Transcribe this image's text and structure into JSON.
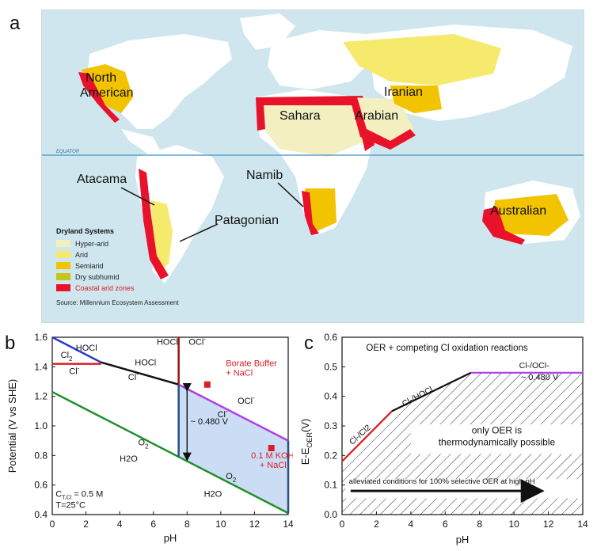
{
  "figure": {
    "panel_labels": [
      "a",
      "b",
      "c"
    ]
  },
  "map": {
    "equator_label": "EQUATOR",
    "region_labels": [
      "North\nAmerican",
      "Sahara",
      "Arabian",
      "Iranian",
      "Atacama",
      "Patagonian",
      "Namib",
      "Australian"
    ],
    "legend": {
      "title": "Dryland Systems",
      "items": [
        {
          "label": "Hyper-arid",
          "color": "#f4efc0"
        },
        {
          "label": "Arid",
          "color": "#f6ea6c"
        },
        {
          "label": "Semiarid",
          "color": "#f2c400"
        },
        {
          "label": "Dry subhumid",
          "color": "#c7c51c"
        },
        {
          "label": "Coastal arid zones",
          "color": "#e8132b"
        }
      ],
      "source": "Source: Millennium Ecosystem Assessment"
    },
    "colors": {
      "ocean": "#cfe6ee",
      "land": "#ffffff",
      "equator": "#5aa3c9"
    }
  },
  "chart_data": [
    {
      "type": "line",
      "panel": "b",
      "ylabel": "Potential (V vs SHE)",
      "xlabel": "pH",
      "xlim": [
        0,
        14
      ],
      "ylim": [
        0.4,
        1.6
      ],
      "xticks": [
        0,
        2,
        4,
        6,
        8,
        10,
        12,
        14
      ],
      "yticks": [
        0.4,
        0.6,
        0.8,
        1.0,
        1.2,
        1.4,
        1.6
      ],
      "series": [
        {
          "color": "#2b3cc4",
          "x": [
            0,
            2.9
          ],
          "y": [
            1.6,
            1.43
          ]
        },
        {
          "color": "#d81f26",
          "x": [
            0,
            2.9
          ],
          "y": [
            1.42,
            1.42
          ]
        },
        {
          "color": "#111111",
          "x": [
            2.9,
            7.5
          ],
          "y": [
            1.43,
            1.28
          ]
        },
        {
          "color": "#9a1416",
          "x": [
            7.5,
            7.5
          ],
          "y": [
            1.6,
            1.28
          ]
        },
        {
          "color": "#b23fe0",
          "x": [
            7.5,
            14
          ],
          "y": [
            1.28,
            0.9
          ]
        },
        {
          "color": "#1e8f2a",
          "x": [
            0,
            14
          ],
          "y": [
            1.23,
            0.41
          ]
        },
        {
          "color": "#2c4f86",
          "x": [
            7.5,
            7.5
          ],
          "y": [
            1.28,
            0.79
          ]
        },
        {
          "color": "#2c4f86",
          "x": [
            14,
            14
          ],
          "y": [
            0.9,
            0.41
          ]
        }
      ],
      "region_labels": [
        "HOCl",
        "Cl2",
        "Cl-",
        "HOCl",
        "Cl-",
        "HOCl",
        "OCl-",
        "OCl-",
        "Cl-",
        "O2",
        "H2O",
        "O2",
        "H2O"
      ],
      "annotations": {
        "delta": "~ 0.480 V",
        "borate": "Borate Buffer\n+ NaCl",
        "koh": "0.1 M KOH\n+ NaCl",
        "conc": "C T,Cl = 0.5 M",
        "temp": "T=25°C"
      },
      "markers": [
        {
          "x": 9.2,
          "y": 1.28,
          "color": "#d81f26"
        },
        {
          "x": 13.0,
          "y": 0.85,
          "color": "#d81f26"
        }
      ],
      "shaded_region_color": "#b9d1f0"
    },
    {
      "type": "line",
      "panel": "c",
      "ylabel": "E-E OER (V)",
      "xlabel": "pH",
      "xlim": [
        0,
        14
      ],
      "ylim": [
        0.0,
        0.6
      ],
      "xticks": [
        0,
        2,
        4,
        6,
        8,
        10,
        12,
        14
      ],
      "yticks": [
        0.0,
        0.1,
        0.2,
        0.3,
        0.4,
        0.5,
        0.6
      ],
      "title": "OER + competing Cl oxidation reactions",
      "series": [
        {
          "name": "Cl-/Cl2",
          "color": "#d81f26",
          "x": [
            0,
            2.9
          ],
          "y": [
            0.18,
            0.35
          ]
        },
        {
          "name": "Cl-/HOCl",
          "color": "#111111",
          "x": [
            2.9,
            7.5
          ],
          "y": [
            0.35,
            0.48
          ]
        },
        {
          "name": "Cl-/OCl-",
          "color": "#b23fe0",
          "x": [
            7.5,
            14
          ],
          "y": [
            0.48,
            0.48
          ]
        }
      ],
      "annotations": {
        "delta": "~ 0.480 V",
        "region_text": "only OER is\nthermodynamically possible",
        "arrow_text": "alleviated conditions for 100% selective OER at high pH"
      }
    }
  ]
}
